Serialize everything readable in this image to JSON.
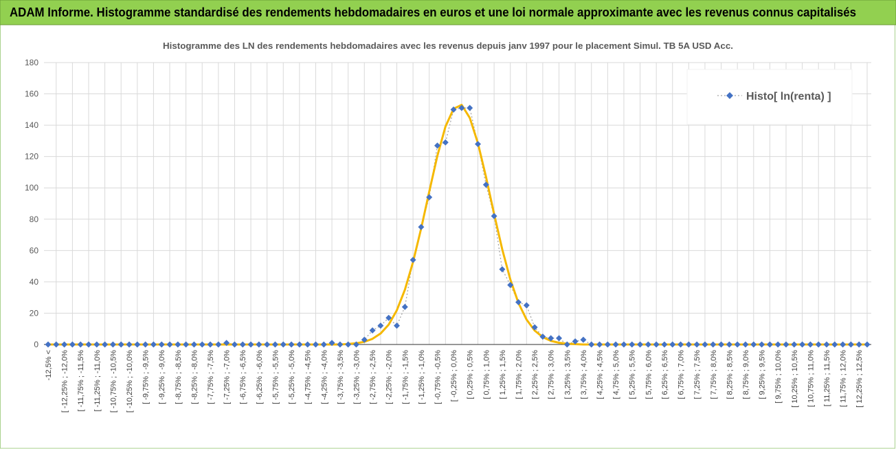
{
  "header": {
    "title": "ADAM Informe. Histogramme standardisé des rendements hebdomadaires en euros et une loi normale approximante avec les revenus connus capitalisés"
  },
  "chart_data": {
    "type": "line",
    "title": "Histogramme des LN des rendements hebdomadaires avec les revenus depuis janv 1997 pour le placement Simul. TB 5A USD Acc.",
    "categories": [
      "-12,5% <",
      null,
      "[ -12,25% ; -12,0%",
      null,
      "[ -11,75% ; -11,5%",
      null,
      "[ -11,25% ; -11,0%",
      null,
      "[ -10,75% ; -10,5%",
      null,
      "[ -10,25% ; -10,0%",
      null,
      "[ -9,75% ; -9,5%",
      null,
      "[ -9,25% ; -9,0%",
      null,
      "[ -8,75% ; -8,5%",
      null,
      "[ -8,25% ; -8,0%",
      null,
      "[ -7,75% ; -7,5%",
      null,
      "[ -7,25% ; -7,0%",
      null,
      "[ -6,75% ; -6,5%",
      null,
      "[ -6,25% ; -6,0%",
      null,
      "[ -5,75% ; -5,5%",
      null,
      "[ -5,25% ; -5,0%",
      null,
      "[ -4,75% ; -4,5%",
      null,
      "[ -4,25% ; -4,0%",
      null,
      "[ -3,75% ; -3,5%",
      null,
      "[ -3,25% ; -3,0%",
      null,
      "[ -2,75% ; -2,5%",
      null,
      "[ -2,25% ; -2,0%",
      null,
      "[ -1,75% ; -1,5%",
      null,
      "[ -1,25% ; -1,0%",
      null,
      "[ -0,75% ; -0,5%",
      null,
      "[ -0,25% ; 0,0%",
      null,
      "[ 0,25% ; 0,5%",
      null,
      "[ 0,75% ; 1,0%",
      null,
      "[ 1,25% ; 1,5%",
      null,
      "[ 1,75% ; 2,0%",
      null,
      "[ 2,25% ; 2,5%",
      null,
      "[ 2,75% ; 3,0%",
      null,
      "[ 3,25% ; 3,5%",
      null,
      "[ 3,75% ; 4,0%",
      null,
      "[ 4,25% ; 4,5%",
      null,
      "[ 4,75% ; 5,0%",
      null,
      "[ 5,25% ; 5,5%",
      null,
      "[ 5,75% ; 6,0%",
      null,
      "[ 6,25% ; 6,5%",
      null,
      "[ 6,75% ; 7,0%",
      null,
      "[ 7,25% ; 7,5%",
      null,
      "[ 7,75% ; 8,0%",
      null,
      "[ 8,25% ; 8,5%",
      null,
      "[ 8,75% ; 9,0%",
      null,
      "[ 9,25% ; 9,5%",
      null,
      "[ 9,75% ; 10,0%",
      null,
      "[ 10,25% ; 10,5%",
      null,
      "[ 10,75% ; 11,0%",
      null,
      "[ 11,25% ; 11,5%",
      null,
      "[ 11,75% ; 12,0%",
      null,
      "[ 12,25% ; 12,5%",
      null
    ],
    "series": [
      {
        "name": "Histo[ ln(renta) ]",
        "color": "#4472c4",
        "line_color": "#a5a5a5",
        "line_style": "dotted",
        "marker": "diamond",
        "values": [
          0,
          0,
          0,
          0,
          0,
          0,
          0,
          0,
          0,
          0,
          0,
          0,
          0,
          0,
          0,
          0,
          0,
          0,
          0,
          0,
          0,
          0,
          1,
          0,
          0,
          0,
          0,
          0,
          0,
          0,
          0,
          0,
          0,
          0,
          0,
          1,
          0,
          0,
          0,
          3,
          9,
          12,
          17,
          12,
          24,
          54,
          75,
          94,
          127,
          129,
          150,
          151,
          151,
          128,
          102,
          82,
          48,
          38,
          27,
          25,
          11,
          5,
          4,
          4,
          0,
          2,
          3,
          0,
          0,
          0,
          0,
          0,
          0,
          0,
          0,
          0,
          0,
          0,
          0,
          0,
          0,
          0,
          0,
          0,
          0,
          0,
          0,
          0,
          0,
          0,
          0,
          0,
          0,
          0,
          0,
          0,
          0,
          0,
          0,
          0,
          0,
          0
        ]
      },
      {
        "color": "#f5b800",
        "line_style": "solid",
        "marker": "none",
        "values": [
          0,
          0,
          0,
          0,
          0,
          0,
          0,
          0,
          0,
          0,
          0,
          0,
          0,
          0,
          0,
          0,
          0,
          0,
          0,
          0,
          0,
          0,
          0,
          0,
          0,
          0,
          0,
          0,
          0,
          0,
          0,
          0,
          0,
          0,
          0,
          0,
          0,
          0.3,
          0.8,
          1.7,
          3.6,
          7.0,
          12.7,
          21.8,
          35.0,
          52.6,
          74.0,
          97.6,
          120.4,
          139.1,
          150.5,
          153.0,
          144.7,
          128.6,
          107.0,
          83.3,
          60.8,
          41.5,
          26.5,
          15.9,
          8.9,
          4.7,
          2.3,
          1.1,
          0.5,
          0.2,
          0,
          0,
          0,
          0,
          0,
          0,
          0,
          0,
          0,
          0,
          0,
          0,
          0,
          0,
          0,
          0,
          0,
          0,
          0,
          0,
          0,
          0,
          0,
          0,
          0,
          0,
          0,
          0,
          0,
          0,
          0,
          0,
          0,
          0,
          0,
          0
        ]
      }
    ],
    "ylim": [
      0,
      180
    ],
    "yticks": [
      0,
      20,
      40,
      60,
      80,
      100,
      120,
      140,
      160,
      180
    ],
    "grid": true,
    "legend": "upper right"
  }
}
